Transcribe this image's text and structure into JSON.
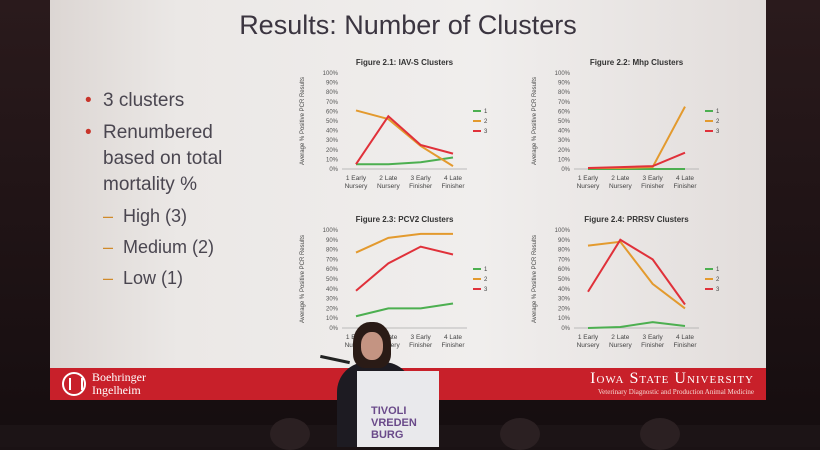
{
  "slide": {
    "title": "Results: Number of Clusters",
    "bullets": {
      "b1": "3 clusters",
      "b2_l1": "Renumbered",
      "b2_l2": "based on total",
      "b2_l3": "mortality %",
      "sub1": "High (3)",
      "sub2": "Medium (2)",
      "sub3": "Low (1)"
    },
    "footer": {
      "left_l1": "Boehringer",
      "left_l2": "Ingelheim",
      "right_name": "Iowa State University",
      "right_sub": "Veterinary Diagnostic and Production Animal Medicine"
    }
  },
  "podium": {
    "l1": "TIVOLI",
    "l2": "VREDEN",
    "l3": "BURG"
  },
  "colors": {
    "c1": "#4caf50",
    "c2": "#e39a2e",
    "c3": "#e0313a"
  },
  "chart_data": [
    {
      "type": "line",
      "title": "Figure 2.1: IAV-S Clusters",
      "ylabel": "Average % Positive PCR Results",
      "yticks": [
        "0%",
        "10%",
        "20%",
        "30%",
        "40%",
        "50%",
        "60%",
        "70%",
        "80%",
        "90%",
        "100%"
      ],
      "categories": [
        "1 Early Nursery",
        "2 Late Nursery",
        "3 Early Finisher",
        "4 Late Finisher"
      ],
      "ylim": [
        0,
        100
      ],
      "series": [
        {
          "name": "1",
          "values": [
            5,
            5,
            7,
            12
          ]
        },
        {
          "name": "2",
          "values": [
            61,
            52,
            24,
            3
          ]
        },
        {
          "name": "3",
          "values": [
            5,
            55,
            25,
            16
          ]
        }
      ]
    },
    {
      "type": "line",
      "title": "Figure 2.2: Mhp Clusters",
      "ylabel": "Average % Positive PCR Results",
      "yticks": [
        "0%",
        "10%",
        "20%",
        "30%",
        "40%",
        "50%",
        "60%",
        "70%",
        "80%",
        "90%",
        "100%"
      ],
      "categories": [
        "1 Early Nursery",
        "2 Late Nursery",
        "3 Early Finisher",
        "4 Late Finisher"
      ],
      "ylim": [
        0,
        100
      ],
      "series": [
        {
          "name": "1",
          "values": [
            0,
            0,
            0,
            0
          ]
        },
        {
          "name": "2",
          "values": [
            1,
            1,
            2,
            65
          ]
        },
        {
          "name": "3",
          "values": [
            1,
            2,
            3,
            17
          ]
        }
      ]
    },
    {
      "type": "line",
      "title": "Figure 2.3: PCV2 Clusters",
      "ylabel": "Average % Positive PCR Results",
      "yticks": [
        "0%",
        "10%",
        "20%",
        "30%",
        "40%",
        "50%",
        "60%",
        "70%",
        "80%",
        "90%",
        "100%"
      ],
      "categories": [
        "1 Early Nursery",
        "2 Late Nursery",
        "3 Early Finisher",
        "4 Late Finisher"
      ],
      "ylim": [
        0,
        100
      ],
      "series": [
        {
          "name": "1",
          "values": [
            12,
            20,
            20,
            25
          ]
        },
        {
          "name": "2",
          "values": [
            77,
            92,
            96,
            96
          ]
        },
        {
          "name": "3",
          "values": [
            38,
            66,
            83,
            75
          ]
        }
      ]
    },
    {
      "type": "line",
      "title": "Figure 2.4: PRRSV Clusters",
      "ylabel": "Average % Positive PCR Results",
      "yticks": [
        "0%",
        "10%",
        "20%",
        "30%",
        "40%",
        "50%",
        "60%",
        "70%",
        "80%",
        "90%",
        "100%"
      ],
      "categories": [
        "1 Early Nursery",
        "2 Late Nursery",
        "3 Early Finisher",
        "4 Late Finisher"
      ],
      "ylim": [
        0,
        100
      ],
      "series": [
        {
          "name": "1",
          "values": [
            0,
            1,
            6,
            2
          ]
        },
        {
          "name": "2",
          "values": [
            84,
            88,
            45,
            20
          ]
        },
        {
          "name": "3",
          "values": [
            37,
            90,
            70,
            24
          ]
        }
      ]
    }
  ]
}
